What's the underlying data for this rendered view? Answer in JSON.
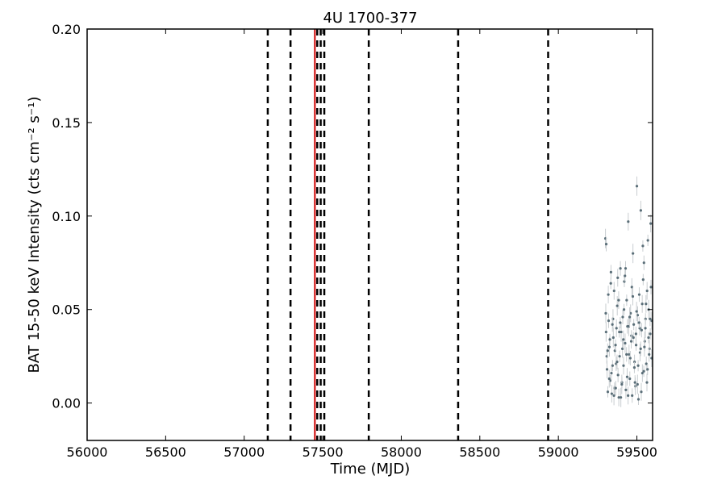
{
  "chart_data": {
    "type": "scatter",
    "title": "4U 1700-377",
    "xlabel": "Time (MJD)",
    "ylabel": "BAT 15-50 keV Intensity (cts cm⁻² s⁻¹)",
    "xlim": [
      56000,
      59600
    ],
    "ylim": [
      -0.02,
      0.2
    ],
    "xticks": [
      56000,
      56500,
      57000,
      57500,
      58000,
      58500,
      59000,
      59500
    ],
    "yticks": [
      0.0,
      0.05,
      0.1,
      0.15,
      0.2
    ],
    "ytick_labels": [
      "0.00",
      "0.05",
      "0.10",
      "0.15",
      "0.20"
    ],
    "grid": false,
    "point_color": "#5a6e78",
    "errorbar_color": "#c8cdd0",
    "vertical_dashed_lines": [
      57150,
      57295,
      57465,
      57487,
      57510,
      57793,
      58362,
      58935
    ],
    "vertical_dashed_color": "#000000",
    "vertical_red_line": 57450,
    "vertical_red_color": "#cc0000",
    "series": [
      {
        "x": [
          59300,
          59305,
          59310,
          59315,
          59320,
          59325,
          59330,
          59335,
          59340,
          59345,
          59350,
          59355,
          59360,
          59365,
          59370,
          59375,
          59380,
          59385,
          59390,
          59395,
          59400,
          59405,
          59410,
          59415,
          59420,
          59425,
          59430,
          59435,
          59440,
          59445,
          59450,
          59455,
          59460,
          59465,
          59470,
          59475,
          59480,
          59485,
          59490,
          59495,
          59500,
          59505,
          59510,
          59515,
          59520,
          59525,
          59530,
          59535,
          59540,
          59545,
          59550,
          59555,
          59560,
          59565,
          59570,
          59575,
          59580,
          59585,
          59590,
          59595,
          59302,
          59308,
          59318,
          59328,
          59338,
          59348,
          59358,
          59368,
          59378,
          59388,
          59398,
          59408,
          59418,
          59428,
          59438,
          59448,
          59458,
          59468,
          59478,
          59488,
          59498,
          59508,
          59518,
          59528,
          59538,
          59548,
          59558,
          59568,
          59578,
          59588,
          59304,
          59314,
          59324,
          59334,
          59344,
          59354,
          59364,
          59374,
          59384,
          59394,
          59404,
          59414,
          59424,
          59434,
          59444,
          59454,
          59464,
          59474,
          59484,
          59494,
          59504,
          59514,
          59524,
          59534,
          59544,
          59554,
          59564,
          59574,
          59584,
          59594
        ],
        "y": [
          0.088,
          0.085,
          0.018,
          0.006,
          0.044,
          0.03,
          0.012,
          0.07,
          0.005,
          0.02,
          0.035,
          0.06,
          0.028,
          0.008,
          0.04,
          0.052,
          0.015,
          0.003,
          0.025,
          0.072,
          0.038,
          0.011,
          0.046,
          0.02,
          0.065,
          0.032,
          0.007,
          0.055,
          0.041,
          0.097,
          0.026,
          0.013,
          0.048,
          0.036,
          0.004,
          0.08,
          0.042,
          0.022,
          0.009,
          0.031,
          0.116,
          0.047,
          0.002,
          0.058,
          0.027,
          0.103,
          0.039,
          0.016,
          0.066,
          0.075,
          0.033,
          0.045,
          0.021,
          0.06,
          0.087,
          0.05,
          0.029,
          0.037,
          0.062,
          0.044,
          0.048,
          0.025,
          0.058,
          0.034,
          0.016,
          0.045,
          0.008,
          0.021,
          0.067,
          0.038,
          0.003,
          0.029,
          0.05,
          0.072,
          0.014,
          0.041,
          0.024,
          0.062,
          0.035,
          0.011,
          0.049,
          0.02,
          0.04,
          0.006,
          0.084,
          0.03,
          0.053,
          0.018,
          0.026,
          0.096,
          0.038,
          0.028,
          0.013,
          0.064,
          0.042,
          0.004,
          0.031,
          0.022,
          0.055,
          0.043,
          0.01,
          0.034,
          0.068,
          0.026,
          0.004,
          0.046,
          0.033,
          0.057,
          0.019,
          0.037,
          0.01,
          0.043,
          0.029,
          0.053,
          0.017,
          0.04,
          0.011,
          0.035,
          0.045,
          0.024
        ]
      }
    ]
  }
}
